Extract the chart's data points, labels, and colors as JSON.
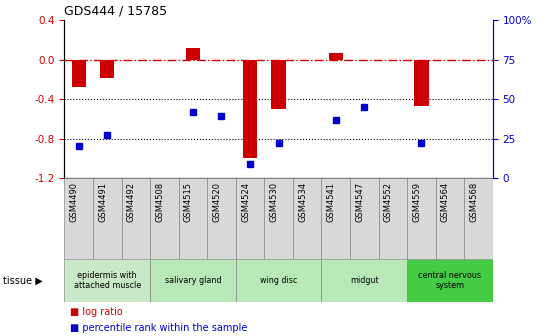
{
  "title": "GDS444 / 15785",
  "samples": [
    "GSM4490",
    "GSM4491",
    "GSM4492",
    "GSM4508",
    "GSM4515",
    "GSM4520",
    "GSM4524",
    "GSM4530",
    "GSM4534",
    "GSM4541",
    "GSM4547",
    "GSM4552",
    "GSM4559",
    "GSM4564",
    "GSM4568"
  ],
  "log_ratio": [
    -0.28,
    -0.19,
    0.0,
    0.0,
    0.12,
    0.0,
    -1.0,
    -0.5,
    0.0,
    0.07,
    0.0,
    0.0,
    -0.47,
    0.0,
    0.0
  ],
  "percentile": [
    20,
    27,
    null,
    null,
    42,
    39,
    9,
    22,
    null,
    37,
    45,
    null,
    22,
    null,
    null
  ],
  "tissue_groups": [
    {
      "label": "epidermis with\nattached muscle",
      "start": 0,
      "end": 3,
      "color": "#c8e8c8"
    },
    {
      "label": "salivary gland",
      "start": 3,
      "end": 6,
      "color": "#b8e8b8"
    },
    {
      "label": "wing disc",
      "start": 6,
      "end": 9,
      "color": "#b8e8b8"
    },
    {
      "label": "midgut",
      "start": 9,
      "end": 12,
      "color": "#b8e8b8"
    },
    {
      "label": "central nervous\nsystem",
      "start": 12,
      "end": 15,
      "color": "#44cc44"
    }
  ],
  "ylim": [
    -1.2,
    0.4
  ],
  "right_ylim": [
    0,
    100
  ],
  "bar_color": "#cc0000",
  "dot_color": "#0000cc",
  "hline_color": "#cc0000",
  "dotted_lines": [
    -0.4,
    -0.8
  ],
  "left_yticks": [
    0.4,
    0.0,
    -0.4,
    -0.8,
    -1.2
  ],
  "right_yticks": [
    0,
    25,
    50,
    75,
    100
  ],
  "right_yticklabels": [
    "0",
    "25",
    "50",
    "75",
    "100%"
  ],
  "sample_box_color": "#d8d8d8",
  "tissue_color_light": "#b8e8b8",
  "tissue_color_dark": "#44cc44",
  "tissue_color_first": "#c8e8c8"
}
